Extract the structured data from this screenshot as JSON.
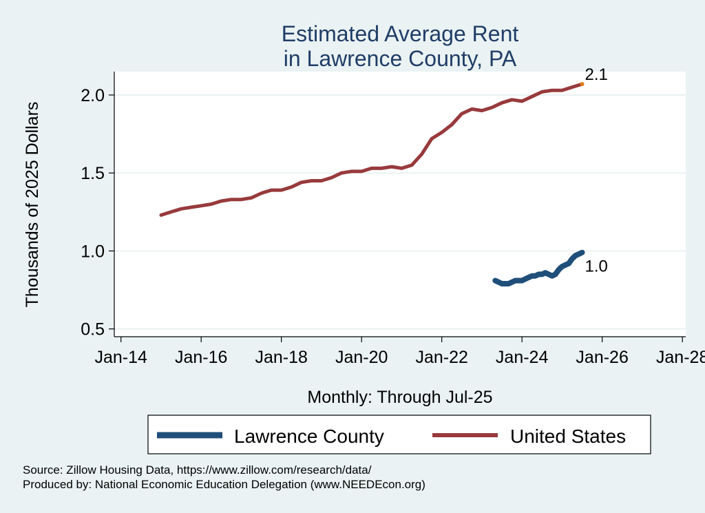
{
  "chart_data": {
    "type": "line",
    "title": [
      "Estimated Average Rent",
      "in Lawrence County, PA"
    ],
    "xlabel": "Monthly: Through Jul-25",
    "ylabel": "Thousands of 2025 Dollars",
    "xlim": [
      "2013-11",
      "2028-02"
    ],
    "ylim": [
      0.45,
      2.15
    ],
    "x_ticks": [
      "Jan-14",
      "Jan-16",
      "Jan-18",
      "Jan-20",
      "Jan-22",
      "Jan-24",
      "Jan-26",
      "Jan-28"
    ],
    "y_ticks": [
      "0.5",
      "1.0",
      "1.5",
      "2.0"
    ],
    "grid": true,
    "legend_position": "bottom",
    "series": [
      {
        "name": "Lawrence County",
        "color": "#1f4e79",
        "end_label": "1.0",
        "points": [
          [
            "2023-05",
            0.81
          ],
          [
            "2023-06",
            0.8
          ],
          [
            "2023-07",
            0.79
          ],
          [
            "2023-08",
            0.79
          ],
          [
            "2023-09",
            0.79
          ],
          [
            "2023-10",
            0.8
          ],
          [
            "2023-11",
            0.81
          ],
          [
            "2023-12",
            0.81
          ],
          [
            "2024-01",
            0.81
          ],
          [
            "2024-02",
            0.82
          ],
          [
            "2024-03",
            0.83
          ],
          [
            "2024-04",
            0.84
          ],
          [
            "2024-05",
            0.84
          ],
          [
            "2024-06",
            0.85
          ],
          [
            "2024-07",
            0.85
          ],
          [
            "2024-08",
            0.86
          ],
          [
            "2024-09",
            0.85
          ],
          [
            "2024-10",
            0.84
          ],
          [
            "2024-11",
            0.85
          ],
          [
            "2024-12",
            0.88
          ],
          [
            "2025-01",
            0.9
          ],
          [
            "2025-02",
            0.91
          ],
          [
            "2025-03",
            0.92
          ],
          [
            "2025-04",
            0.95
          ],
          [
            "2025-05",
            0.97
          ],
          [
            "2025-06",
            0.98
          ],
          [
            "2025-07",
            0.99
          ]
        ]
      },
      {
        "name": "United States",
        "color": "#983a3c",
        "end_label": "2.1",
        "points": [
          [
            "2015-01",
            1.23
          ],
          [
            "2015-04",
            1.25
          ],
          [
            "2015-07",
            1.27
          ],
          [
            "2015-10",
            1.28
          ],
          [
            "2016-01",
            1.29
          ],
          [
            "2016-04",
            1.3
          ],
          [
            "2016-07",
            1.32
          ],
          [
            "2016-10",
            1.33
          ],
          [
            "2017-01",
            1.33
          ],
          [
            "2017-04",
            1.34
          ],
          [
            "2017-07",
            1.37
          ],
          [
            "2017-10",
            1.39
          ],
          [
            "2018-01",
            1.39
          ],
          [
            "2018-04",
            1.41
          ],
          [
            "2018-07",
            1.44
          ],
          [
            "2018-10",
            1.45
          ],
          [
            "2019-01",
            1.45
          ],
          [
            "2019-04",
            1.47
          ],
          [
            "2019-07",
            1.5
          ],
          [
            "2019-10",
            1.51
          ],
          [
            "2020-01",
            1.51
          ],
          [
            "2020-04",
            1.53
          ],
          [
            "2020-07",
            1.53
          ],
          [
            "2020-10",
            1.54
          ],
          [
            "2021-01",
            1.53
          ],
          [
            "2021-04",
            1.55
          ],
          [
            "2021-07",
            1.62
          ],
          [
            "2021-10",
            1.72
          ],
          [
            "2022-01",
            1.76
          ],
          [
            "2022-04",
            1.81
          ],
          [
            "2022-07",
            1.88
          ],
          [
            "2022-10",
            1.91
          ],
          [
            "2023-01",
            1.9
          ],
          [
            "2023-04",
            1.92
          ],
          [
            "2023-07",
            1.95
          ],
          [
            "2023-10",
            1.97
          ],
          [
            "2024-01",
            1.96
          ],
          [
            "2024-04",
            1.99
          ],
          [
            "2024-07",
            2.02
          ],
          [
            "2024-10",
            2.03
          ],
          [
            "2025-01",
            2.03
          ],
          [
            "2025-04",
            2.05
          ],
          [
            "2025-07",
            2.07
          ]
        ]
      }
    ]
  },
  "footer": {
    "source": "Source: Zillow Housing Data, https://www.zillow.com/research/data/",
    "produced_by": "Produced by: National Economic Education Delegation (www.NEEDEcon.org)"
  }
}
